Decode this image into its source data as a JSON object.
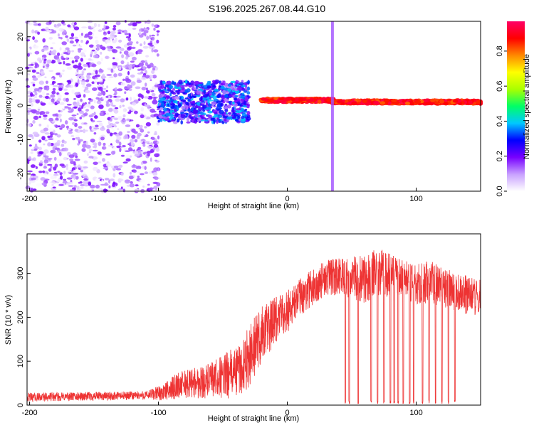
{
  "title": "S196.2025.267.08.44.G10",
  "chart_data": [
    {
      "type": "heatmap",
      "name": "spectrogram",
      "xlabel": "Height of straight line (km)",
      "ylabel": "Frequency (Hz)",
      "xlim": [
        -202,
        150
      ],
      "ylim": [
        -25,
        24.5
      ],
      "xticks": [
        -200,
        -100,
        0,
        100
      ],
      "yticks": [
        20,
        10,
        0,
        -10,
        -20
      ],
      "colorbar": {
        "label": "Normalized spectral amplitude",
        "range": [
          0,
          0.97
        ],
        "ticks": [
          0.0,
          0.2,
          0.4,
          0.6,
          0.8
        ],
        "tick_labels": [
          "0.0",
          "0.2",
          "0.4",
          "0.6",
          "0.8"
        ],
        "colormap": [
          "#ffffff",
          "#c8a0ff",
          "#7700ff",
          "#0000ff",
          "#00c8ff",
          "#00ff66",
          "#aaff00",
          "#ffff00",
          "#ff8800",
          "#ff0000",
          "#ff0066"
        ]
      },
      "regions": [
        {
          "x": [
            -202,
            -100
          ],
          "freq": [
            -25,
            24.5
          ],
          "amplitude": [
            0.0,
            0.2
          ],
          "description": "noise"
        },
        {
          "x": [
            -100,
            -30
          ],
          "freq": [
            -5,
            7
          ],
          "amplitude": [
            0.1,
            0.4
          ],
          "description": "onset"
        },
        {
          "x": [
            -20,
            35
          ],
          "freq": [
            1,
            2
          ],
          "amplitude": [
            0.8,
            0.95
          ],
          "description": "carrier line"
        },
        {
          "x": [
            35,
            150
          ],
          "freq": [
            0.5,
            1.5
          ],
          "amplitude": [
            0.8,
            0.95
          ],
          "description": "carrier line"
        }
      ],
      "vertical_artifact_x": 35
    },
    {
      "type": "line",
      "name": "snr",
      "xlabel": "Height of straight line (km)",
      "ylabel": "SNR (10 * v/v)",
      "xlim": [
        -202,
        150
      ],
      "ylim": [
        0,
        390
      ],
      "xticks": [
        -200,
        -100,
        0,
        100
      ],
      "yticks": [
        0,
        100,
        200,
        300
      ],
      "color": "#ee3333",
      "series": [
        {
          "name": "SNR envelope",
          "x": [
            -202,
            -150,
            -110,
            -95,
            -85,
            -75,
            -60,
            -45,
            -35,
            -30,
            -20,
            -10,
            0,
            10,
            20,
            30,
            40,
            50,
            60,
            70,
            80,
            90,
            100,
            110,
            120,
            130,
            140,
            150
          ],
          "mean": [
            18,
            20,
            22,
            30,
            45,
            50,
            55,
            70,
            85,
            110,
            160,
            190,
            215,
            245,
            270,
            290,
            290,
            290,
            285,
            305,
            295,
            285,
            275,
            280,
            270,
            260,
            250,
            245
          ],
          "amplitude": [
            10,
            10,
            10,
            20,
            30,
            35,
            40,
            55,
            60,
            70,
            70,
            55,
            50,
            45,
            40,
            40,
            45,
            50,
            55,
            55,
            50,
            45,
            45,
            50,
            45,
            45,
            45,
            40
          ]
        }
      ],
      "dropouts_x": [
        45,
        48,
        55,
        65,
        70,
        75,
        80,
        83,
        86,
        90,
        95,
        98,
        105,
        110,
        115,
        120,
        125,
        130
      ]
    }
  ]
}
